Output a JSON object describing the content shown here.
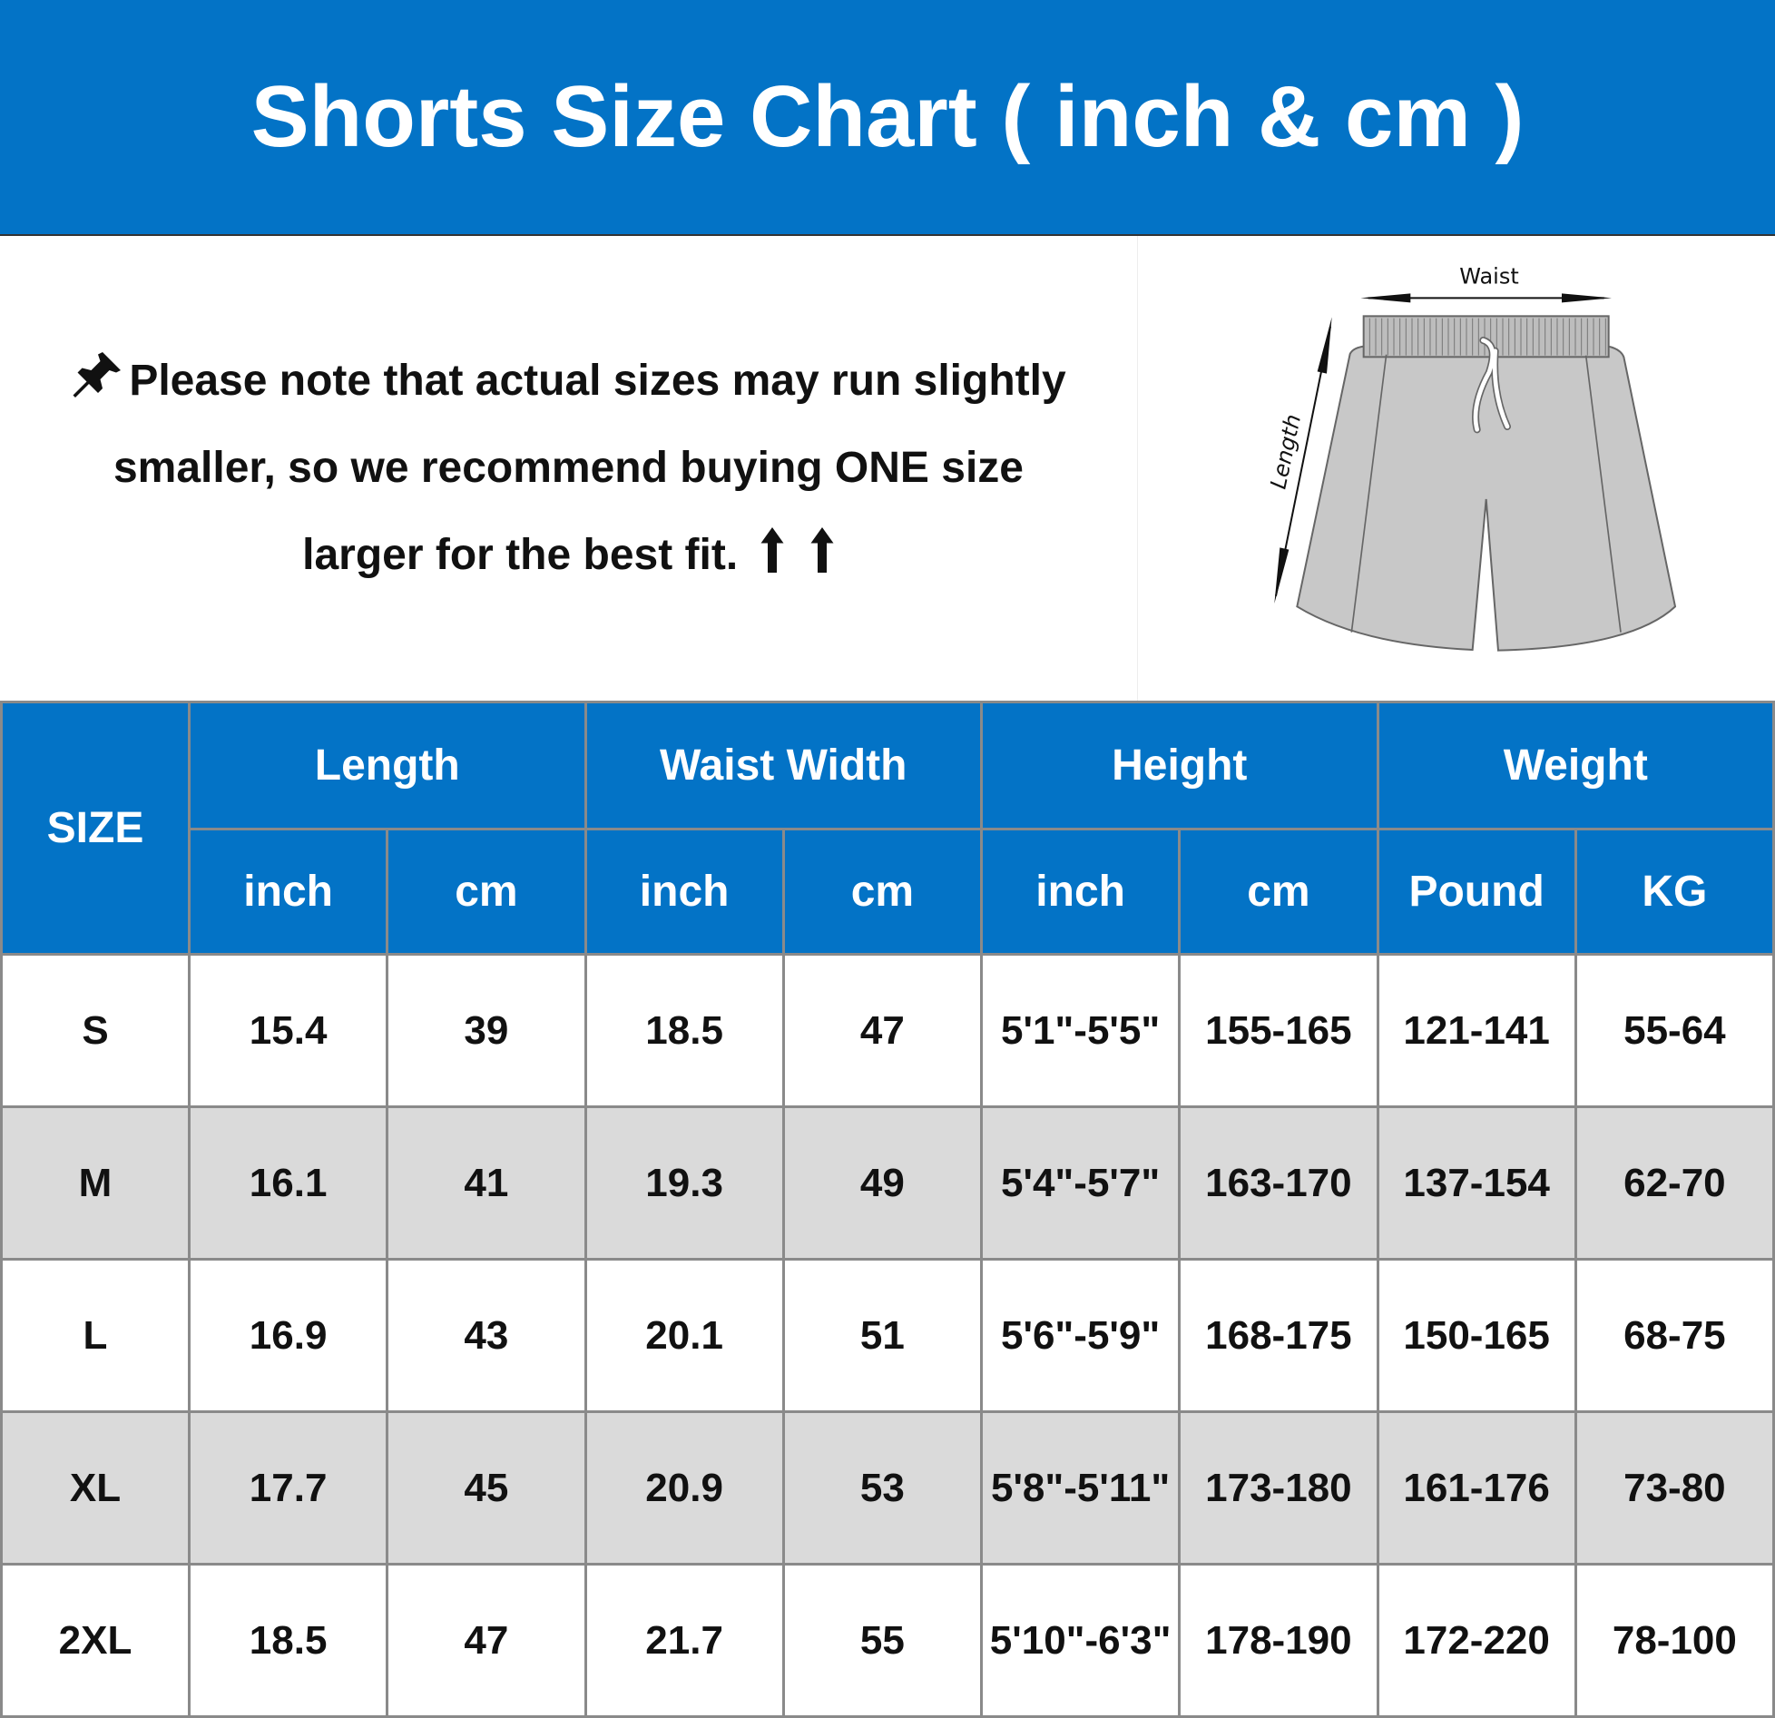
{
  "header": {
    "title": "Shorts Size Chart ( inch & cm )",
    "background": "#0373c6"
  },
  "note": {
    "icon": "pushpin-icon",
    "lines": [
      "Please note that actual sizes may run slightly",
      "smaller, so we recommend buying ONE size",
      "larger for the best fit."
    ],
    "trailing_icons": [
      "arrow-up-icon",
      "arrow-up-icon"
    ]
  },
  "illustration": {
    "waist_label": "Waist",
    "length_label": "Length"
  },
  "table": {
    "size_header": "SIZE",
    "groups": [
      {
        "label": "Length",
        "units": [
          "inch",
          "cm"
        ]
      },
      {
        "label": "Waist Width",
        "units": [
          "inch",
          "cm"
        ]
      },
      {
        "label": "Height",
        "units": [
          "inch",
          "cm"
        ]
      },
      {
        "label": "Weight",
        "units": [
          "Pound",
          "KG"
        ]
      }
    ],
    "rows": [
      [
        "S",
        "15.4",
        "39",
        "18.5",
        "47",
        "5'1\"-5'5\"",
        "155-165",
        "121-141",
        "55-64"
      ],
      [
        "M",
        "16.1",
        "41",
        "19.3",
        "49",
        "5'4\"-5'7\"",
        "163-170",
        "137-154",
        "62-70"
      ],
      [
        "L",
        "16.9",
        "43",
        "20.1",
        "51",
        "5'6\"-5'9\"",
        "168-175",
        "150-165",
        "68-75"
      ],
      [
        "XL",
        "17.7",
        "45",
        "20.9",
        "53",
        "5'8\"-5'11\"",
        "173-180",
        "161-176",
        "73-80"
      ],
      [
        "2XL",
        "18.5",
        "47",
        "21.7",
        "55",
        "5'10\"-6'3\"",
        "178-190",
        "172-220",
        "78-100"
      ]
    ],
    "alt_row_color": "#dadada"
  }
}
